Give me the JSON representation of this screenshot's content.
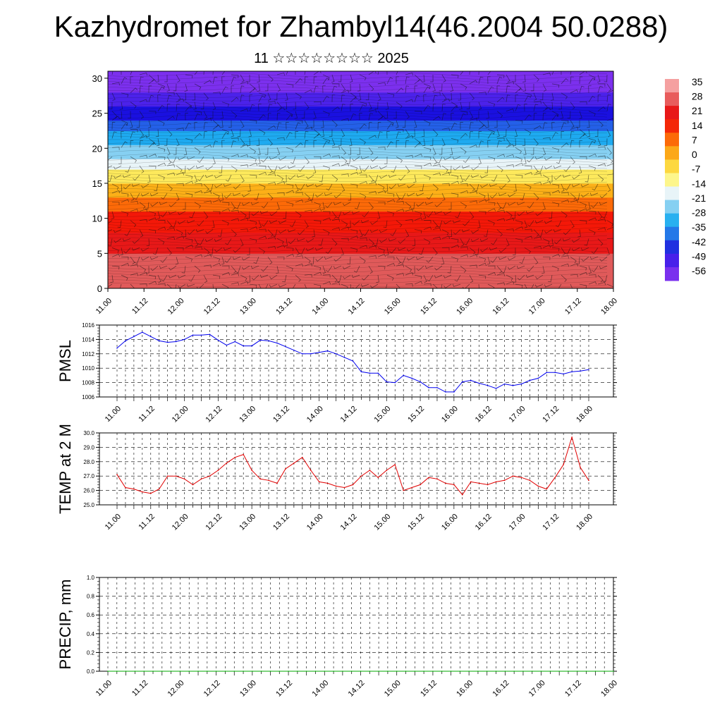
{
  "title": "Kazhydromet for Zhambyl14(46.2004 50.0288)",
  "subtitle": "11 ☆☆☆☆☆☆☆☆ 2025",
  "chart_data": [
    {
      "type": "heatmap",
      "description": "Temperature vs height cross-section with wind barbs",
      "x_ticks": [
        "11.00",
        "11.12",
        "12.00",
        "12.12",
        "13.00",
        "13.12",
        "14.00",
        "14.12",
        "15.00",
        "15.12",
        "16.00",
        "16.12",
        "17.00",
        "17.12",
        "18.00"
      ],
      "y_ticks": [
        "0",
        "5",
        "10",
        "15",
        "20",
        "25",
        "30"
      ],
      "ylim": [
        0,
        31
      ],
      "colorbar_labels": [
        "35",
        "28",
        "21",
        "14",
        "7",
        "0",
        "-7",
        "-14",
        "-21",
        "-28",
        "-35",
        "-42",
        "-49",
        "-56"
      ],
      "bands": [
        {
          "y0": 0,
          "y1": 5,
          "color": "#e05a5a"
        },
        {
          "y0": 5,
          "y1": 8,
          "color": "#e81818"
        },
        {
          "y0": 8,
          "y1": 11,
          "color": "#f41808"
        },
        {
          "y0": 11,
          "y1": 13,
          "color": "#fc6a08"
        },
        {
          "y0": 13,
          "y1": 15,
          "color": "#fcb018"
        },
        {
          "y0": 15,
          "y1": 17,
          "color": "#fde95c"
        },
        {
          "y0": 17,
          "y1": 18.5,
          "color": "#e8f4f8"
        },
        {
          "y0": 18.5,
          "y1": 20.5,
          "color": "#86d0f2"
        },
        {
          "y0": 20.5,
          "y1": 22.5,
          "color": "#1eaaf0"
        },
        {
          "y0": 22.5,
          "y1": 24,
          "color": "#2460e8"
        },
        {
          "y0": 24,
          "y1": 26,
          "color": "#1a10e0"
        },
        {
          "y0": 26,
          "y1": 28,
          "color": "#4c22ea"
        },
        {
          "y0": 28,
          "y1": 31,
          "color": "#7c30ee"
        }
      ]
    },
    {
      "type": "line",
      "ylabel": "PMSL",
      "ylim": [
        1006,
        1016
      ],
      "y_ticks": [
        "1006",
        "1008",
        "1010",
        "1012",
        "1014",
        "1016"
      ],
      "x_ticks": [
        "11.00",
        "11.12",
        "12.00",
        "12.12",
        "13.00",
        "13.12",
        "14.00",
        "14.12",
        "15.00",
        "15.12",
        "16.00",
        "16.12",
        "17.00",
        "17.12",
        "18.00"
      ],
      "color": "#0000ee",
      "values": [
        1012.8,
        1013.8,
        1014.4,
        1015.0,
        1014.4,
        1013.8,
        1013.6,
        1013.7,
        1014.0,
        1014.6,
        1014.6,
        1014.7,
        1013.9,
        1013.2,
        1013.7,
        1013.1,
        1013.1,
        1013.9,
        1013.8,
        1013.5,
        1013.0,
        1012.5,
        1012.0,
        1012.0,
        1012.2,
        1012.4,
        1012.0,
        1011.5,
        1011.0,
        1009.5,
        1009.3,
        1009.3,
        1008.1,
        1008.0,
        1009.0,
        1008.6,
        1008.1,
        1007.3,
        1007.3,
        1006.7,
        1006.7,
        1008.1,
        1008.3,
        1007.9,
        1007.6,
        1007.2,
        1007.8,
        1007.6,
        1007.8,
        1008.3,
        1008.6,
        1009.4,
        1009.4,
        1009.2,
        1009.5,
        1009.6,
        1009.8
      ]
    },
    {
      "type": "line",
      "ylabel": "TEMP at 2 M",
      "ylim": [
        25.0,
        30.0
      ],
      "y_ticks": [
        "25.0",
        "26.0",
        "27.0",
        "28.0",
        "29.0",
        "30.0"
      ],
      "x_ticks": [
        "11.00",
        "11.12",
        "12.00",
        "12.12",
        "13.00",
        "13.12",
        "14.00",
        "14.12",
        "15.00",
        "15.12",
        "16.00",
        "16.12",
        "17.00",
        "17.12",
        "18.00"
      ],
      "color": "#e00000",
      "values": [
        27.1,
        26.2,
        26.1,
        25.9,
        25.8,
        26.1,
        27.0,
        27.0,
        26.8,
        26.4,
        26.8,
        27.0,
        27.4,
        27.9,
        28.3,
        28.5,
        27.4,
        26.8,
        26.7,
        26.5,
        27.5,
        27.9,
        28.3,
        27.4,
        26.6,
        26.5,
        26.3,
        26.2,
        26.4,
        27.0,
        27.4,
        26.9,
        27.4,
        27.8,
        26.0,
        26.2,
        26.4,
        26.9,
        26.8,
        26.5,
        26.4,
        25.7,
        26.6,
        26.5,
        26.4,
        26.6,
        26.7,
        27.0,
        26.9,
        26.7,
        26.3,
        26.1,
        26.9,
        27.8,
        29.7,
        27.6,
        26.7
      ]
    },
    {
      "type": "line",
      "ylabel": "PRECIP, mm",
      "ylim": [
        0.0,
        1.0
      ],
      "y_ticks": [
        "0.0",
        "0.2",
        "0.4",
        "0.6",
        "0.8",
        "1.0"
      ],
      "x_ticks": [
        "11.00",
        "11.12",
        "12.00",
        "12.12",
        "13.00",
        "13.12",
        "14.00",
        "14.12",
        "15.00",
        "15.12",
        "16.00",
        "16.12",
        "17.00",
        "17.12",
        "18.00"
      ],
      "color": "#00aa00",
      "values": [
        0,
        0,
        0,
        0,
        0,
        0,
        0,
        0,
        0,
        0,
        0,
        0,
        0,
        0,
        0,
        0,
        0,
        0,
        0,
        0,
        0,
        0,
        0,
        0,
        0,
        0,
        0,
        0,
        0,
        0,
        0,
        0,
        0,
        0,
        0,
        0,
        0,
        0,
        0,
        0,
        0,
        0,
        0,
        0,
        0,
        0,
        0,
        0,
        0,
        0,
        0,
        0,
        0,
        0,
        0,
        0,
        0
      ]
    }
  ]
}
